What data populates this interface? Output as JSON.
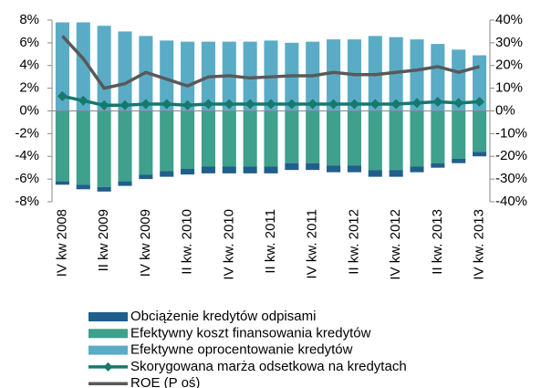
{
  "chart_data": {
    "type": "bar",
    "categories": [
      "IV kw 2008",
      null,
      "II kw 2009",
      null,
      "IV kw 2009",
      null,
      "II kw. 2010",
      null,
      "IV kw. 2010",
      null,
      "II kw. 2011",
      null,
      "IV kw. 2011",
      null,
      "II kw. 2012",
      null,
      "IV kw. 2012",
      null,
      "II kw. 2013",
      null,
      "IV kw. 2013"
    ],
    "series": [
      {
        "name": "Obciążenie kredytów odpisami",
        "type": "bar",
        "color": "#1f5f8b",
        "values": [
          -0.3,
          -0.4,
          -0.4,
          -0.4,
          -0.4,
          -0.5,
          -0.5,
          -0.6,
          -0.6,
          -0.6,
          -0.6,
          -0.6,
          -0.6,
          -0.6,
          -0.6,
          -0.6,
          -0.6,
          -0.5,
          -0.4,
          -0.4,
          -0.4
        ]
      },
      {
        "name": "Efektywny koszt finansowania kredytów",
        "type": "bar",
        "color": "#3fa08c",
        "values": [
          -6.2,
          -6.5,
          -6.7,
          -6.2,
          -5.6,
          -5.3,
          -5.1,
          -4.9,
          -4.9,
          -4.9,
          -4.9,
          -4.6,
          -4.6,
          -4.8,
          -4.8,
          -5.2,
          -5.2,
          -4.9,
          -4.6,
          -4.2,
          -3.6
        ]
      },
      {
        "name": "Efektywne oprocentowanie kredytów",
        "type": "bar",
        "color": "#5aacc6",
        "values": [
          7.8,
          7.8,
          7.5,
          7.0,
          6.6,
          6.2,
          6.1,
          6.1,
          6.1,
          6.1,
          6.2,
          6.0,
          6.1,
          6.3,
          6.3,
          6.6,
          6.5,
          6.3,
          5.9,
          5.4,
          4.9
        ]
      },
      {
        "name": "Skorygowana marża odsetkowa na kredytach",
        "type": "line",
        "marker": "diamond",
        "color": "#17786c",
        "values": [
          1.3,
          0.9,
          0.5,
          0.5,
          0.6,
          0.6,
          0.5,
          0.6,
          0.6,
          0.6,
          0.6,
          0.6,
          0.6,
          0.6,
          0.6,
          0.6,
          0.6,
          0.7,
          0.8,
          0.7,
          0.8
        ]
      },
      {
        "name": "ROE (P oś)",
        "type": "line",
        "axis": "y2",
        "color": "#595959",
        "values": [
          33,
          23,
          10,
          12,
          17,
          14,
          11,
          15,
          15.5,
          14.5,
          15,
          15.5,
          15.5,
          17,
          16,
          16,
          17,
          18,
          19.5,
          17,
          19.5
        ]
      }
    ],
    "ylim": [
      -8,
      8
    ],
    "yticks": [
      {
        "value": -8,
        "label": "-8%"
      },
      {
        "value": -6,
        "label": "-6%"
      },
      {
        "value": -4,
        "label": "-4%"
      },
      {
        "value": -2,
        "label": "-2%"
      },
      {
        "value": 0,
        "label": "0%"
      },
      {
        "value": 2,
        "label": "2%"
      },
      {
        "value": 4,
        "label": "4%"
      },
      {
        "value": 6,
        "label": "6%"
      },
      {
        "value": 8,
        "label": "8%"
      }
    ],
    "y2lim": [
      -40,
      40
    ],
    "y2ticks": [
      {
        "value": -40,
        "label": "-40%"
      },
      {
        "value": -30,
        "label": "-30%"
      },
      {
        "value": -20,
        "label": "-20%"
      },
      {
        "value": -10,
        "label": "-10%"
      },
      {
        "value": 0,
        "label": "0%"
      },
      {
        "value": 10,
        "label": "10%"
      },
      {
        "value": 20,
        "label": "20%"
      },
      {
        "value": 30,
        "label": "30%"
      },
      {
        "value": 40,
        "label": "40%"
      }
    ],
    "grid": false
  }
}
